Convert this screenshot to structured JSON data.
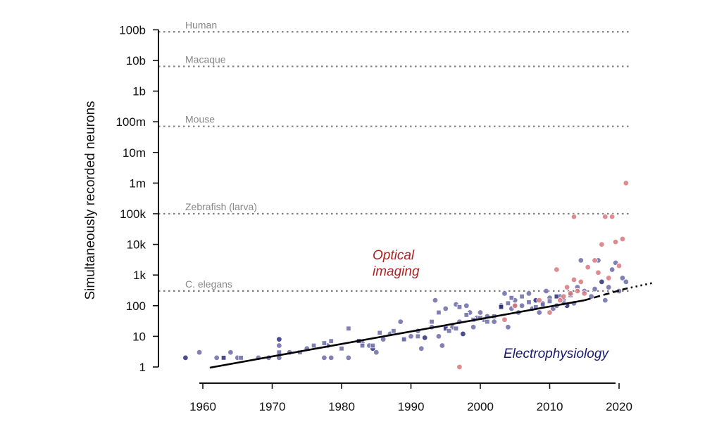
{
  "chart_data": {
    "type": "scatter",
    "ylabel": "Simultaneously recorded neurons",
    "xlabel": "",
    "y_scale": "log",
    "xlim": [
      1955,
      2025
    ],
    "ylim": [
      1,
      100000000000
    ],
    "x_ticks": [
      1960,
      1970,
      1980,
      1990,
      2000,
      2010,
      2020
    ],
    "y_ticks": [
      {
        "value": 1,
        "label": "1"
      },
      {
        "value": 10,
        "label": "10"
      },
      {
        "value": 100,
        "label": "100"
      },
      {
        "value": 1000,
        "label": "1k"
      },
      {
        "value": 10000,
        "label": "10k"
      },
      {
        "value": 100000,
        "label": "100k"
      },
      {
        "value": 1000000,
        "label": "1m"
      },
      {
        "value": 10000000,
        "label": "10m"
      },
      {
        "value": 100000000,
        "label": "100m"
      },
      {
        "value": 1000000000,
        "label": "1b"
      },
      {
        "value": 10000000000,
        "label": "10b"
      },
      {
        "value": 100000000000,
        "label": "100b"
      }
    ],
    "reference_lines": [
      {
        "label": "Human",
        "value": 86000000000
      },
      {
        "label": "Macaque",
        "value": 6400000000
      },
      {
        "label": "Mouse",
        "value": 71000000
      },
      {
        "label": "Zebrafish (larva)",
        "value": 100000
      },
      {
        "label": "C. elegans",
        "value": 302
      }
    ],
    "series_labels": [
      {
        "text": "Optical\nimaging",
        "color": "#b22222"
      },
      {
        "text": "Electrophysiology",
        "color": "#1a1a6e"
      }
    ],
    "trend": {
      "solid": {
        "x": [
          1961,
          2015
        ],
        "y": [
          0.95,
          150
        ]
      },
      "dashed": {
        "x": [
          2015,
          2021
        ],
        "y": [
          150,
          360
        ]
      },
      "dotted": {
        "x": [
          2021,
          2025
        ],
        "y": [
          360,
          560
        ]
      }
    },
    "colors": {
      "optical": "#d9787c",
      "ephys": "#6b6ba6",
      "ephys_dark": "#2c2c7a",
      "trend": "#000000",
      "reference": "#7f7f7f"
    },
    "series": [
      {
        "name": "Electrophysiology",
        "marker": "circle",
        "points": [
          [
            1957.5,
            2
          ],
          [
            1959.5,
            3
          ],
          [
            1962,
            2
          ],
          [
            1964,
            3
          ],
          [
            1965,
            2
          ],
          [
            1968,
            2
          ],
          [
            1969.5,
            2
          ],
          [
            1971,
            2
          ],
          [
            1971,
            5
          ],
          [
            1971,
            8
          ],
          [
            1972.5,
            3
          ],
          [
            1975,
            4
          ],
          [
            1977.5,
            2
          ],
          [
            1978,
            5
          ],
          [
            1978.5,
            2
          ],
          [
            1981,
            2
          ],
          [
            1983,
            6
          ],
          [
            1984,
            5
          ],
          [
            1984.5,
            4
          ],
          [
            1985,
            3
          ],
          [
            1986,
            8
          ],
          [
            1987,
            12
          ],
          [
            1988.5,
            30
          ],
          [
            1989,
            8
          ],
          [
            1990,
            10
          ],
          [
            1991,
            15
          ],
          [
            1991.5,
            4
          ],
          [
            1992,
            9
          ],
          [
            1993,
            20
          ],
          [
            1993.5,
            150
          ],
          [
            1994,
            10
          ],
          [
            1994.5,
            5
          ],
          [
            1995,
            80
          ],
          [
            1996,
            20
          ],
          [
            1996.5,
            110
          ],
          [
            1997,
            30
          ],
          [
            1997.5,
            12
          ],
          [
            1998,
            100
          ],
          [
            1998.5,
            60
          ],
          [
            1999,
            20
          ],
          [
            1999.5,
            40
          ],
          [
            2000,
            60
          ],
          [
            2000.5,
            35
          ],
          [
            2001,
            45
          ],
          [
            2002,
            30
          ],
          [
            2003,
            100
          ],
          [
            2003.5,
            250
          ],
          [
            2004,
            20
          ],
          [
            2004.5,
            80
          ],
          [
            2005,
            150
          ],
          [
            2005.5,
            60
          ],
          [
            2006,
            100
          ],
          [
            2007,
            250
          ],
          [
            2007.5,
            80
          ],
          [
            2008,
            150
          ],
          [
            2008.5,
            60
          ],
          [
            2009,
            120
          ],
          [
            2009.5,
            300
          ],
          [
            2010,
            180
          ],
          [
            2010.5,
            80
          ],
          [
            2011,
            100
          ],
          [
            2011.5,
            200
          ],
          [
            2012,
            150
          ],
          [
            2012.5,
            100
          ],
          [
            2013,
            250
          ],
          [
            2013.5,
            120
          ],
          [
            2014,
            400
          ],
          [
            2014.5,
            3000
          ],
          [
            2015,
            300
          ],
          [
            2016,
            200
          ],
          [
            2016.5,
            350
          ],
          [
            2017,
            3000
          ],
          [
            2017.5,
            600
          ],
          [
            2018,
            150
          ],
          [
            2018.5,
            400
          ],
          [
            2019,
            1500
          ],
          [
            2019.5,
            2500
          ],
          [
            2020,
            300
          ],
          [
            2020.5,
            800
          ],
          [
            2021,
            600
          ]
        ]
      },
      {
        "name": "Electrophysiology",
        "marker": "square",
        "points": [
          [
            1963,
            2
          ],
          [
            1965.5,
            2
          ],
          [
            1971,
            3
          ],
          [
            1974,
            3
          ],
          [
            1976,
            5
          ],
          [
            1977.5,
            6
          ],
          [
            1978.5,
            7
          ],
          [
            1980,
            4
          ],
          [
            1981,
            18
          ],
          [
            1982.5,
            7
          ],
          [
            1983,
            5
          ],
          [
            1984.5,
            5
          ],
          [
            1985.5,
            13
          ],
          [
            1987.5,
            15
          ],
          [
            1989,
            8
          ],
          [
            1991,
            10
          ],
          [
            1993,
            30
          ],
          [
            1994,
            60
          ],
          [
            1995,
            18
          ],
          [
            1995.5,
            15
          ],
          [
            1996.5,
            18
          ],
          [
            1997,
            90
          ],
          [
            1998,
            50
          ],
          [
            1999,
            35
          ],
          [
            2000,
            40
          ],
          [
            2001,
            30
          ],
          [
            2002,
            45
          ],
          [
            2003,
            90
          ],
          [
            2004,
            120
          ],
          [
            2004.5,
            180
          ],
          [
            2005,
            100
          ],
          [
            2006,
            200
          ],
          [
            2007,
            130
          ],
          [
            2008,
            90
          ],
          [
            2009,
            110
          ],
          [
            2010,
            140
          ],
          [
            2011,
            200
          ],
          [
            2012,
            120
          ],
          [
            2013,
            220
          ]
        ]
      },
      {
        "name": "Optical imaging",
        "marker": "circle",
        "points": [
          [
            1997,
            1
          ],
          [
            2003.5,
            35
          ],
          [
            2005,
            100
          ],
          [
            2008.5,
            150
          ],
          [
            2010,
            60
          ],
          [
            2011,
            1500
          ],
          [
            2011.5,
            150
          ],
          [
            2012,
            200
          ],
          [
            2012.5,
            400
          ],
          [
            2013,
            250
          ],
          [
            2013.5,
            700
          ],
          [
            2013.5,
            80000
          ],
          [
            2014,
            300
          ],
          [
            2014.5,
            600
          ],
          [
            2015,
            250
          ],
          [
            2015.5,
            1800
          ],
          [
            2016.5,
            3000
          ],
          [
            2017,
            1200
          ],
          [
            2017.5,
            10000
          ],
          [
            2018,
            80000
          ],
          [
            2018.5,
            800
          ],
          [
            2019,
            80000
          ],
          [
            2019.5,
            12000
          ],
          [
            2020,
            2000
          ],
          [
            2020.5,
            15000
          ],
          [
            2021,
            1000000
          ]
        ]
      }
    ]
  }
}
